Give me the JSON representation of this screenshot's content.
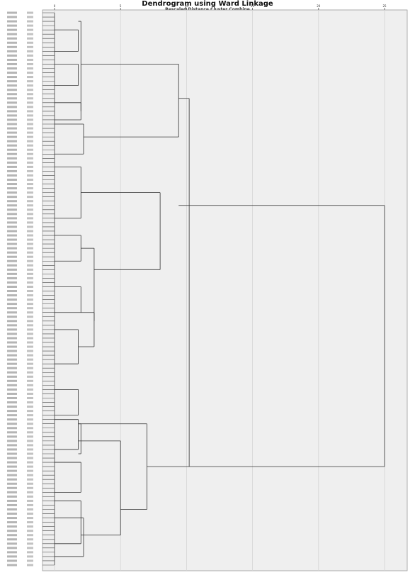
{
  "chart_data": {
    "type": "dendrogram",
    "title": "Dendrogram using Ward Linkage",
    "subtitle": "Rescaled Distance Cluster Combine",
    "x_ticks": [
      "0",
      "5",
      "10",
      "15",
      "20",
      "25"
    ],
    "xlim": [
      0,
      25
    ],
    "leaf_count": 130,
    "leaf_labels_legible": false,
    "links": [
      {
        "join_distance": 1.8,
        "from_leaf": 4,
        "to_leaf": 9,
        "from_distance": 0,
        "to_distance": 0
      },
      {
        "join_distance": 1.8,
        "from_leaf": 12,
        "to_leaf": 17,
        "from_distance": 0,
        "to_distance": 0
      },
      {
        "join_distance": 2.0,
        "from_leaf": 21,
        "to_leaf": 25,
        "from_distance": 0,
        "to_distance": 0
      },
      {
        "join_distance": 2.2,
        "from_leaf": 26,
        "to_leaf": 33,
        "from_distance": 0,
        "to_distance": 0
      },
      {
        "join_distance": 2.0,
        "from_leaf": 36,
        "to_leaf": 48,
        "from_distance": 0,
        "to_distance": 0
      },
      {
        "join_distance": 2.0,
        "from_leaf": 52,
        "to_leaf": 58,
        "from_distance": 0,
        "to_distance": 0
      },
      {
        "join_distance": 2.0,
        "from_leaf": 64,
        "to_leaf": 70,
        "from_distance": 0,
        "to_distance": 0
      },
      {
        "join_distance": 1.8,
        "from_leaf": 74,
        "to_leaf": 82,
        "from_distance": 0,
        "to_distance": 0
      },
      {
        "join_distance": 1.8,
        "from_leaf": 88,
        "to_leaf": 94,
        "from_distance": 0,
        "to_distance": 0
      },
      {
        "join_distance": 1.8,
        "from_leaf": 95,
        "to_leaf": 102,
        "from_distance": 0,
        "to_distance": 0
      },
      {
        "join_distance": 2.0,
        "from_leaf": 105,
        "to_leaf": 112,
        "from_distance": 0,
        "to_distance": 0
      },
      {
        "join_distance": 2.0,
        "from_leaf": 114,
        "to_leaf": 124,
        "from_distance": 0,
        "to_distance": 0
      },
      {
        "join_distance": 2.2,
        "from_leaf": 118,
        "to_leaf": 127,
        "from_distance": 0,
        "to_distance": 0
      },
      {
        "join_distance": 2.0,
        "from_leaf": 2,
        "to_leaf": 23,
        "from_distance": 1.8,
        "to_distance": 2.0
      },
      {
        "join_distance": 9.4,
        "from_leaf": 12,
        "to_leaf": 29,
        "from_distance": 2.0,
        "to_distance": 2.2
      },
      {
        "join_distance": 8.0,
        "from_leaf": 42,
        "to_leaf": 60,
        "from_distance": 2.0,
        "to_distance": 3.0
      },
      {
        "join_distance": 3.0,
        "from_leaf": 55,
        "to_leaf": 72,
        "from_distance": 2.0,
        "to_distance": 3.0
      },
      {
        "join_distance": 3.0,
        "from_leaf": 70,
        "to_leaf": 78,
        "from_distance": 2.0,
        "to_distance": 1.8
      },
      {
        "join_distance": 10.2,
        "from_leaf": 20,
        "to_leaf": 106,
        "from_distance": 9.4,
        "to_distance": 7.0
      },
      {
        "join_distance": 7.0,
        "from_leaf": 96,
        "to_leaf": 116,
        "from_distance": 1.8,
        "to_distance": 5.0
      },
      {
        "join_distance": 5.0,
        "from_leaf": 100,
        "to_leaf": 122,
        "from_distance": 1.8,
        "to_distance": 2.0
      },
      {
        "join_distance": 2.0,
        "from_leaf": 96,
        "to_leaf": 103,
        "from_distance": 1.8,
        "to_distance": 1.8
      },
      {
        "join_distance": 25.0,
        "from_leaf": 45,
        "to_leaf": 106,
        "from_distance": 9.4,
        "to_distance": 10.2
      }
    ]
  }
}
